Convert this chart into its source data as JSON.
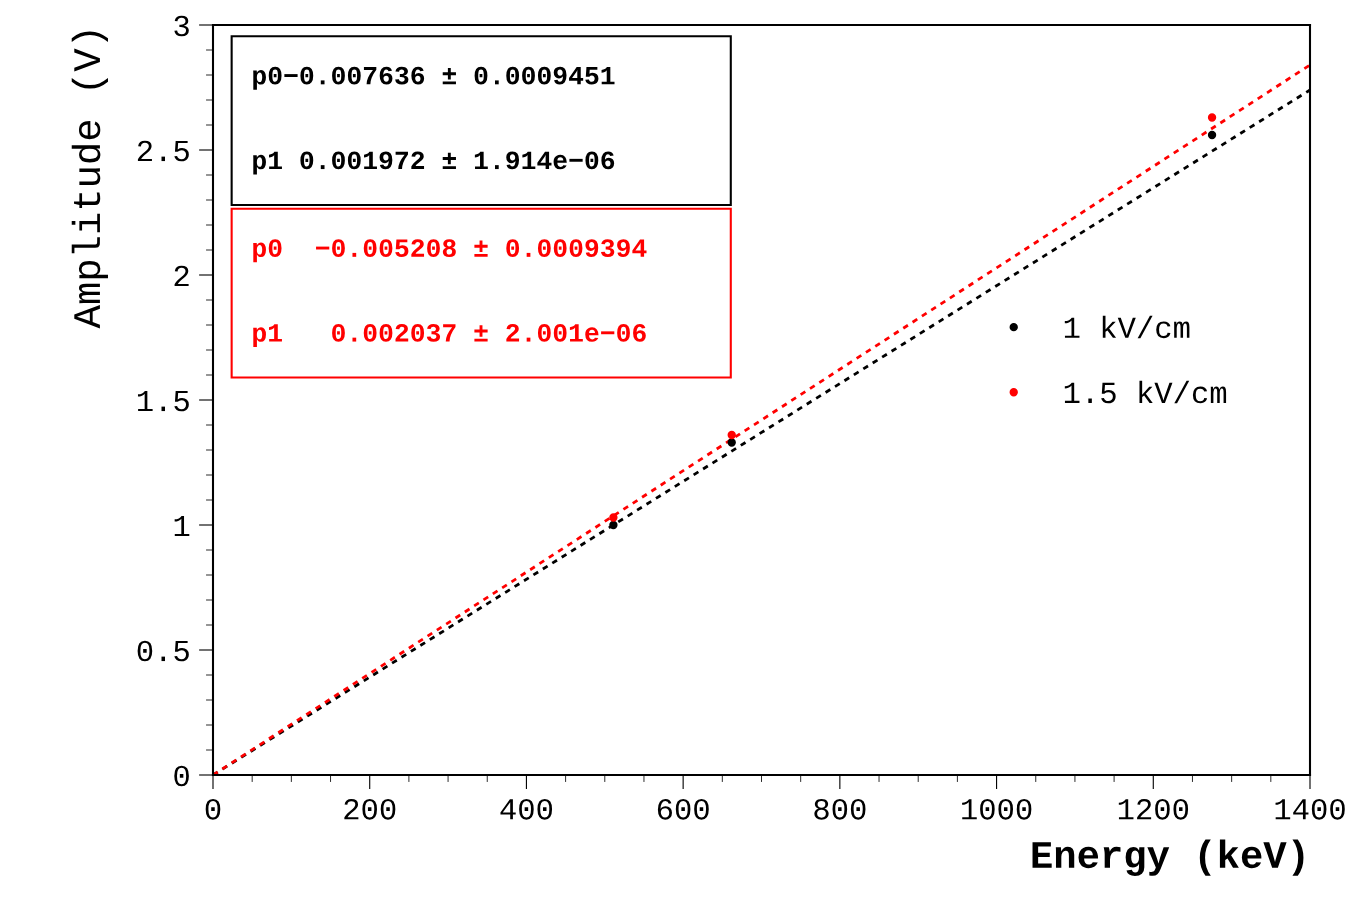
{
  "chart_data": {
    "type": "scatter",
    "xlabel": "Energy (keV)",
    "ylabel": "Amplitude (V)",
    "series": [
      {
        "name": "1 kV/cm",
        "color": "#000000",
        "x": [
          511,
          662,
          1275
        ],
        "values": [
          1.0,
          1.33,
          2.56
        ]
      },
      {
        "name": "1.5 kV/cm",
        "color": "#ff0000",
        "x": [
          511,
          662,
          1275
        ],
        "values": [
          1.03,
          1.36,
          2.63
        ]
      },
      {
        "type": "line",
        "color": "#000000",
        "x": [
          0,
          1400
        ],
        "values": [
          0,
          2.74
        ],
        "line_style": "dashed",
        "marker": "none"
      },
      {
        "type": "line",
        "color": "#ff0000",
        "x": [
          0,
          1400
        ],
        "values": [
          0,
          2.84
        ],
        "line_style": "dashed",
        "marker": "none"
      }
    ],
    "annotations": [
      "p0−0.007636 ± 0.0009451",
      "p1 0.001972 ± 1.914e−06",
      "p0  −0.005208 ± 0.0009394",
      "p1   0.002037 ± 2.001e−06"
    ],
    "xlim": [
      0,
      1400
    ],
    "xticks": [
      0,
      200,
      400,
      600,
      800,
      1000,
      1200,
      1400
    ],
    "ylim": [
      0,
      3
    ],
    "yticks": [
      0,
      0.5,
      1,
      1.5,
      2,
      2.5,
      3
    ],
    "grid": false,
    "legend": "right",
    "marker": "circle"
  }
}
